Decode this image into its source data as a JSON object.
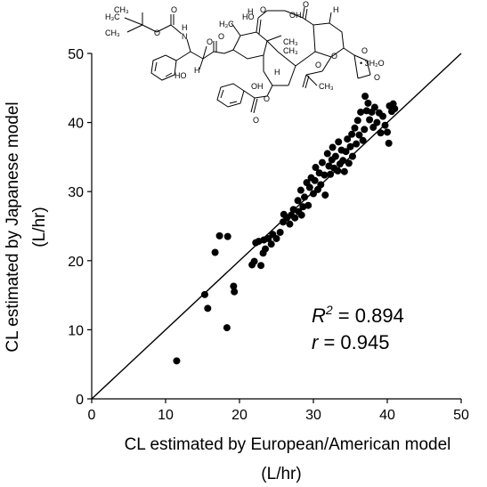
{
  "chart_data": {
    "type": "scatter",
    "title": "",
    "xlabel": "CL estimated by European/American model",
    "xlabel_unit": "(L/hr)",
    "ylabel": "CL estimated by Japanese model",
    "ylabel_unit": "(L/hr)",
    "xlim": [
      0,
      50
    ],
    "ylim": [
      0,
      50
    ],
    "xticks": [
      "0",
      "10",
      "20",
      "30",
      "40",
      "50"
    ],
    "yticks": [
      "0",
      "10",
      "20",
      "30",
      "40",
      "50"
    ],
    "grid": false,
    "legend": "none",
    "identity_line": [
      [
        0,
        0
      ],
      [
        50,
        50
      ]
    ],
    "marker_color": "#000000",
    "annotations": {
      "r2_symbol": "R",
      "r2_sup": "2",
      "r2_value": " = 0.894",
      "r_symbol": "r",
      "r_value": " = 0.945"
    },
    "structure": {
      "labels": [
        "H₃C",
        "CH₃",
        "CH₃",
        "O",
        "O",
        "N",
        "H",
        "O",
        "HO",
        "O",
        "H",
        "H₃C",
        "HO",
        "H",
        "O",
        "OH",
        "CH₃",
        "CH₃",
        "H",
        "O",
        "O",
        "O",
        "OH",
        "O",
        "H",
        "O",
        "O",
        "CH₃",
        "O",
        "• 3H₂O"
      ]
    },
    "points": [
      [
        11.5,
        5.5
      ],
      [
        15.3,
        15.1
      ],
      [
        15.7,
        13.1
      ],
      [
        16.7,
        21.2
      ],
      [
        17.3,
        23.6
      ],
      [
        18.3,
        10.3
      ],
      [
        18.4,
        23.5
      ],
      [
        19.2,
        16.3
      ],
      [
        19.3,
        15.5
      ],
      [
        21.7,
        19.4
      ],
      [
        22.0,
        19.9
      ],
      [
        22.2,
        22.6
      ],
      [
        22.6,
        22.8
      ],
      [
        22.9,
        19.3
      ],
      [
        23.2,
        21.1
      ],
      [
        23.3,
        23.0
      ],
      [
        23.5,
        21.7
      ],
      [
        23.9,
        23.2
      ],
      [
        24.3,
        22.4
      ],
      [
        24.5,
        23.8
      ],
      [
        25.0,
        23.2
      ],
      [
        25.5,
        24.1
      ],
      [
        25.9,
        25.6
      ],
      [
        26.0,
        26.7
      ],
      [
        26.4,
        26.2
      ],
      [
        26.8,
        25.3
      ],
      [
        27.0,
        26.6
      ],
      [
        27.3,
        27.4
      ],
      [
        27.5,
        26.2
      ],
      [
        27.9,
        28.7
      ],
      [
        28.0,
        27.1
      ],
      [
        28.3,
        30.2
      ],
      [
        28.4,
        26.6
      ],
      [
        28.6,
        27.8
      ],
      [
        28.8,
        29.2
      ],
      [
        29.1,
        31.3
      ],
      [
        29.3,
        28.0
      ],
      [
        29.5,
        30.6
      ],
      [
        29.7,
        32.0
      ],
      [
        30.0,
        29.7
      ],
      [
        30.2,
        31.6
      ],
      [
        30.3,
        33.5
      ],
      [
        30.6,
        30.3
      ],
      [
        30.8,
        32.7
      ],
      [
        31.0,
        31.0
      ],
      [
        31.2,
        34.2
      ],
      [
        31.5,
        32.4
      ],
      [
        31.6,
        29.5
      ],
      [
        31.9,
        35.5
      ],
      [
        32.1,
        33.7
      ],
      [
        32.3,
        32.5
      ],
      [
        32.5,
        34.6
      ],
      [
        32.6,
        36.4
      ],
      [
        32.8,
        33.4
      ],
      [
        33.0,
        35.1
      ],
      [
        33.3,
        33.0
      ],
      [
        33.4,
        37.2
      ],
      [
        33.6,
        34.0
      ],
      [
        33.8,
        36.0
      ],
      [
        34.0,
        34.5
      ],
      [
        34.2,
        32.9
      ],
      [
        34.4,
        35.8
      ],
      [
        34.6,
        37.6
      ],
      [
        34.8,
        34.1
      ],
      [
        35.0,
        36.5
      ],
      [
        35.2,
        38.3
      ],
      [
        35.3,
        35.1
      ],
      [
        35.6,
        39.2
      ],
      [
        35.8,
        36.9
      ],
      [
        36.0,
        40.3
      ],
      [
        36.2,
        38.2
      ],
      [
        36.4,
        41.5
      ],
      [
        36.7,
        37.4
      ],
      [
        36.9,
        39.0
      ],
      [
        37.0,
        43.8
      ],
      [
        37.2,
        41.7
      ],
      [
        37.4,
        42.8
      ],
      [
        37.6,
        40.4
      ],
      [
        37.9,
        41.5
      ],
      [
        38.1,
        39.3
      ],
      [
        38.3,
        42.2
      ],
      [
        38.6,
        40.0
      ],
      [
        38.9,
        41.4
      ],
      [
        39.1,
        38.5
      ],
      [
        39.4,
        40.9
      ],
      [
        39.7,
        39.6
      ],
      [
        40.0,
        38.6
      ],
      [
        40.2,
        37.0
      ],
      [
        40.3,
        42.4
      ],
      [
        40.6,
        41.6
      ],
      [
        40.8,
        42.7
      ],
      [
        41.0,
        42.0
      ]
    ]
  }
}
